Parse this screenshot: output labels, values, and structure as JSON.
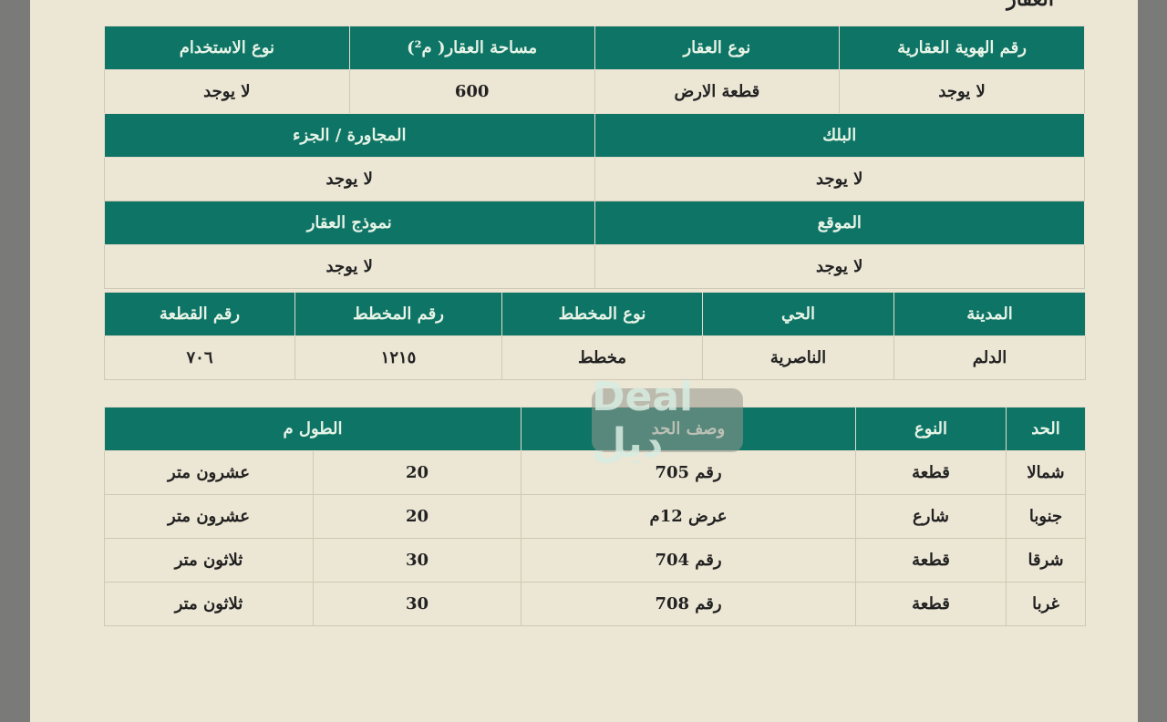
{
  "section_title": "العقار",
  "property": {
    "headers": [
      "رقم الهوية العقارية",
      "نوع العقار",
      "مساحة العقار( م²)",
      "نوع الاستخدام"
    ],
    "values": [
      "لا يوجد",
      "قطعة الارض",
      "600",
      "لا يوجد"
    ]
  },
  "block": {
    "headers": [
      "البلك",
      "المجاورة / الجزء"
    ],
    "values": [
      "لا يوجد",
      "لا يوجد"
    ]
  },
  "location": {
    "headers": [
      "الموقع",
      "نموذج العقار"
    ],
    "values": [
      "لا يوجد",
      "لا يوجد"
    ]
  },
  "plan": {
    "headers": [
      "المدينة",
      "الحي",
      "نوع المخطط",
      "رقم المخطط",
      "رقم القطعة"
    ],
    "values": [
      "الدلم",
      "الناصرية",
      "مخطط",
      "١٢١٥",
      "٧٠٦"
    ]
  },
  "boundaries": {
    "headers": [
      "الحد",
      "النوع",
      "وصف الحد",
      "الطول م"
    ],
    "rows": [
      [
        "شمالا",
        "قطعة",
        "رقم 705",
        "20",
        "عشرون متر"
      ],
      [
        "جنوبا",
        "شارع",
        "عرض 12م",
        "20",
        "عشرون متر"
      ],
      [
        "شرقا",
        "قطعة",
        "رقم 704",
        "30",
        "ثلاثون متر"
      ],
      [
        "غربا",
        "قطعة",
        "رقم 708",
        "30",
        "ثلاثون متر"
      ]
    ]
  },
  "watermark": "Deal ديل",
  "colors": {
    "header": "#0e7566",
    "paper": "#ece6d4"
  }
}
